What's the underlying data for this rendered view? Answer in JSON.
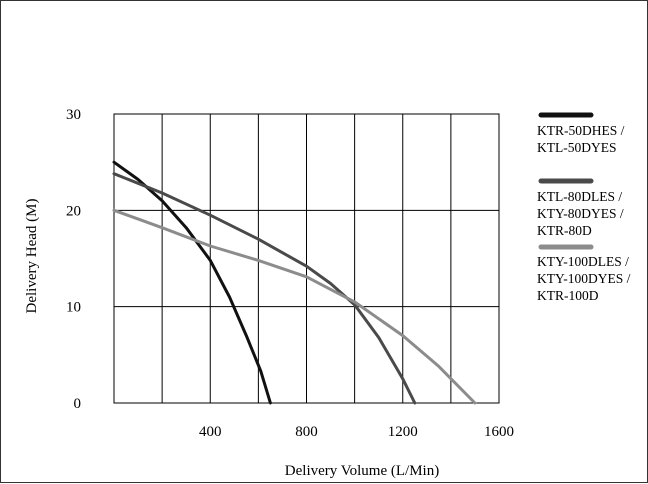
{
  "chart_data": {
    "type": "line",
    "title": "",
    "xlabel": "Delivery Volume (L/Min)",
    "ylabel": "Delivery Head (M)",
    "xlim": [
      0,
      1600
    ],
    "ylim": [
      0,
      30
    ],
    "x_ticks": [
      400,
      800,
      1200,
      1600
    ],
    "x_tick_labels": [
      "400",
      "800",
      "1200",
      "1600"
    ],
    "y_ticks": [
      0,
      10,
      20,
      30
    ],
    "y_tick_labels": [
      "0",
      "10",
      "20",
      "30"
    ],
    "x_gridlines": [
      0,
      200,
      400,
      600,
      800,
      1000,
      1200,
      1400,
      1600
    ],
    "y_gridlines": [
      10,
      20,
      30
    ],
    "grid": true,
    "legend_position": "right",
    "series": [
      {
        "legend_lines": [
          "KTR-50DHES /",
          "KTL-50DYES"
        ],
        "color": "#111111",
        "points": [
          [
            0,
            25
          ],
          [
            100,
            23.2
          ],
          [
            200,
            21
          ],
          [
            300,
            18.2
          ],
          [
            400,
            14.8
          ],
          [
            480,
            11
          ],
          [
            550,
            7
          ],
          [
            610,
            3.3
          ],
          [
            650,
            0
          ]
        ]
      },
      {
        "legend_lines": [
          "KTL-80DLES /",
          "KTY-80DYES /",
          "KTR-80D"
        ],
        "color": "#4a4a4a",
        "points": [
          [
            0,
            23.8
          ],
          [
            200,
            21.8
          ],
          [
            400,
            19.5
          ],
          [
            600,
            17
          ],
          [
            800,
            14.2
          ],
          [
            900,
            12.4
          ],
          [
            1000,
            10.2
          ],
          [
            1100,
            6.8
          ],
          [
            1200,
            2.5
          ],
          [
            1250,
            0
          ]
        ]
      },
      {
        "legend_lines": [
          "KTY-100DLES /",
          "KTY-100DYES /",
          "KTR-100D"
        ],
        "color": "#8c8c8c",
        "points": [
          [
            0,
            20
          ],
          [
            200,
            18.2
          ],
          [
            400,
            16.3
          ],
          [
            600,
            14.8
          ],
          [
            800,
            13.1
          ],
          [
            1000,
            10.5
          ],
          [
            1200,
            7
          ],
          [
            1350,
            3.8
          ],
          [
            1500,
            0
          ]
        ]
      }
    ]
  }
}
